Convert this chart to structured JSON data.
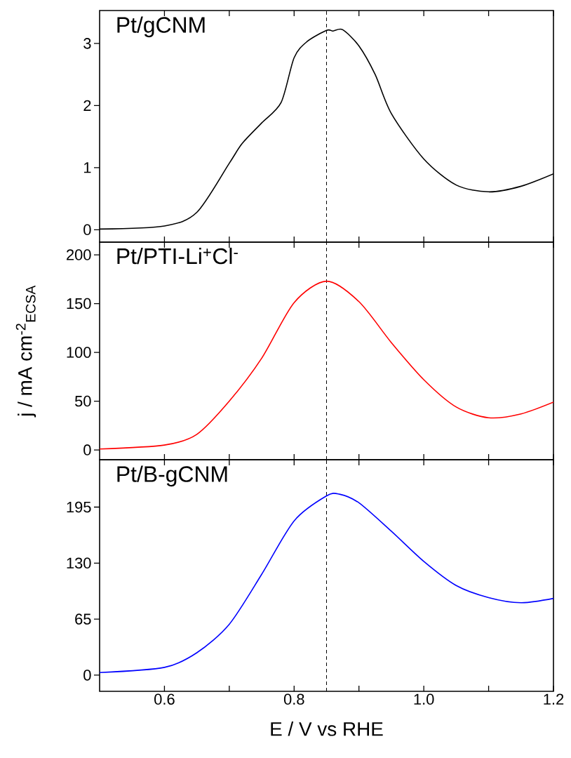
{
  "chart_data": [
    {
      "type": "line",
      "annotations": [
        "Pt/gCNM"
      ],
      "xlim": [
        0.5,
        1.2
      ],
      "ylim": [
        -0.2,
        3.53
      ],
      "yticks": [
        0,
        1,
        2,
        3
      ],
      "tick_labels": "y",
      "xticks": [
        {
          "value": 0.6,
          "label": null
        },
        {
          "value": 0.7,
          "label": null
        },
        {
          "value": 0.8,
          "label": null
        },
        {
          "value": 0.9,
          "label": null
        },
        {
          "value": 1.0,
          "label": null
        },
        {
          "value": 1.1,
          "label": null
        },
        {
          "value": 1.2,
          "label": null
        }
      ],
      "ref_lines": [
        {
          "axis": "x",
          "value": 0.85,
          "line_style": "dashed"
        }
      ],
      "series": [
        {
          "color": "#000000",
          "x": [
            0.5,
            0.6,
            0.65,
            0.7,
            0.72,
            0.75,
            0.78,
            0.8,
            0.82,
            0.85,
            0.86,
            0.875,
            0.9,
            0.925,
            0.95,
            1.0,
            1.05,
            1.1,
            1.15,
            1.2
          ],
          "values": [
            0.01,
            0.06,
            0.28,
            1.07,
            1.39,
            1.72,
            2.05,
            2.77,
            3.03,
            3.21,
            3.2,
            3.22,
            2.96,
            2.5,
            1.87,
            1.14,
            0.72,
            0.61,
            0.7,
            0.9
          ]
        }
      ]
    },
    {
      "type": "line",
      "annotations": [
        "Pt/PTI-Li$^{+}$Cl$^{-}$"
      ],
      "ylabel": "j / mA cm$^{-2}$$_{ECSA}$",
      "xlim": [
        0.5,
        1.2
      ],
      "ylim": [
        -10,
        213
      ],
      "yticks": [
        0,
        50,
        100,
        150,
        200
      ],
      "tick_labels": "y",
      "xticks": [
        {
          "value": 0.6,
          "label": null
        },
        {
          "value": 0.7,
          "label": null
        },
        {
          "value": 0.8,
          "label": null
        },
        {
          "value": 0.9,
          "label": null
        },
        {
          "value": 1.0,
          "label": null
        },
        {
          "value": 1.1,
          "label": null
        },
        {
          "value": 1.2,
          "label": null
        }
      ],
      "ref_lines": [
        {
          "axis": "x",
          "value": 0.85,
          "line_style": "dashed"
        }
      ],
      "series": [
        {
          "color": "#ff0000",
          "x": [
            0.5,
            0.6,
            0.65,
            0.7,
            0.75,
            0.8,
            0.85,
            0.9,
            0.95,
            1.0,
            1.05,
            1.1,
            1.15,
            1.2
          ],
          "values": [
            1,
            5,
            16,
            50,
            94,
            151,
            173,
            152,
            110,
            72,
            44,
            33,
            37,
            49
          ]
        }
      ]
    },
    {
      "type": "line",
      "annotations": [
        "Pt/B-gCNM"
      ],
      "xlabel": "E / V vs RHE",
      "xlim": [
        0.5,
        1.2
      ],
      "ylim": [
        -18.8,
        250
      ],
      "yticks": [
        0,
        65,
        130,
        195
      ],
      "xticks": [
        0.6,
        {
          "value": 0.7,
          "label": null
        },
        0.8,
        {
          "value": 0.9,
          "label": null
        },
        {
          "value": 1.0,
          "label": "1.0"
        },
        {
          "value": 1.1,
          "label": null
        },
        1.2
      ],
      "ref_lines": [
        {
          "axis": "x",
          "value": 0.85,
          "line_style": "dashed"
        }
      ],
      "series": [
        {
          "color": "#0000ff",
          "x": [
            0.5,
            0.6,
            0.65,
            0.7,
            0.75,
            0.8,
            0.85,
            0.87,
            0.9,
            0.95,
            1.0,
            1.05,
            1.1,
            1.15,
            1.2
          ],
          "values": [
            3,
            9,
            26,
            59,
            117,
            179,
            208,
            210,
            200,
            167,
            132,
            104,
            90,
            84,
            89
          ]
        }
      ]
    }
  ]
}
